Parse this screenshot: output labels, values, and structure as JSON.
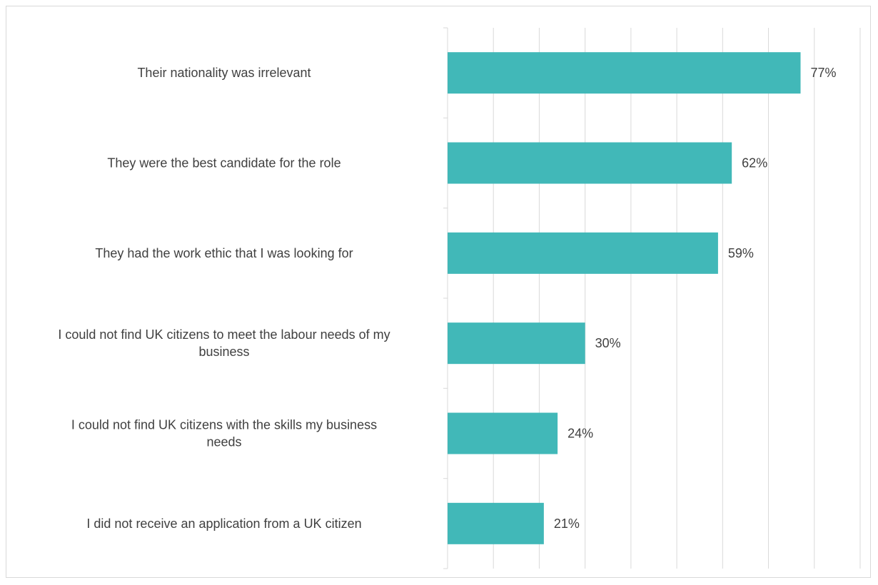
{
  "chart_data": {
    "type": "bar",
    "orientation": "horizontal",
    "categories": [
      [
        "Their nationality was irrelevant"
      ],
      [
        "They were the best candidate for the role"
      ],
      [
        "They had the work ethic that I was looking for"
      ],
      [
        "I could not find UK citizens to meet the labour needs of my",
        "business"
      ],
      [
        "I could not find UK citizens with the skills my business",
        "needs"
      ],
      [
        "I did not receive an application from a UK citizen"
      ]
    ],
    "values": [
      77,
      62,
      59,
      30,
      24,
      21
    ],
    "value_labels": [
      "77%",
      "62%",
      "59%",
      "30%",
      "24%",
      "21%"
    ],
    "xlim": [
      0,
      90
    ],
    "x_gridline_step": 10,
    "grid": true,
    "legend": "none",
    "bar_color": "#41b8b8",
    "gridline_color": "#d9d9d9",
    "text_color": "#404040"
  }
}
